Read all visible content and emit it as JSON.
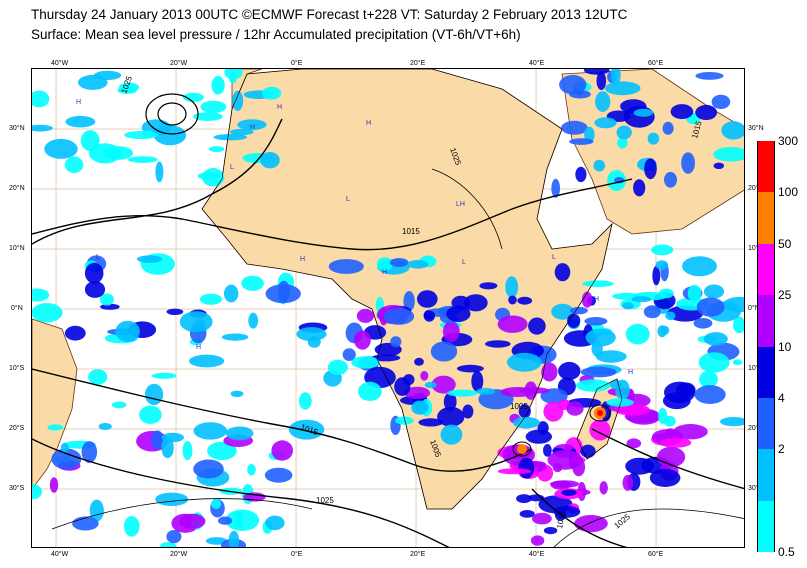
{
  "title_line1": "Thursday 24 January 2013 00UTC ©ECMWF Forecast t+228 VT: Saturday 2 February 2013 12UTC",
  "title_line2": "Surface: Mean sea level pressure / 12hr Accumulated precipitation (VT-6h/VT+6h)",
  "top_ticks": [
    "40°W",
    "20°W",
    "0°E",
    "20°E",
    "40°E",
    "60°E"
  ],
  "bottom_ticks": [
    "40°W",
    "20°W",
    "0°E",
    "20°E",
    "40°E",
    "60°E"
  ],
  "left_ticks": [
    "30°N",
    "20°N",
    "10°N",
    "0°N",
    "10°S",
    "20°S",
    "30°S"
  ],
  "right_ticks": [
    "30°N",
    "20°N",
    "10°N",
    "0°N",
    "10°S",
    "20°S",
    "30°S"
  ],
  "legend": {
    "labels": [
      "300",
      "100",
      "50",
      "25",
      "10",
      "4",
      "2",
      "0.5"
    ],
    "colors": [
      "#ff0000",
      "#ff8000",
      "#ff00ff",
      "#b000ff",
      "#0000e0",
      "#2060ff",
      "#00c0ff",
      "#00ffff"
    ]
  },
  "map": {
    "land_color": "#fadaa6",
    "isobar_labels": [
      "1025",
      "1025",
      "1015",
      "1015",
      "1015",
      "1005",
      "1005",
      "1025",
      "1015",
      "1025"
    ],
    "pressure_centers": [
      "H",
      "H",
      "H",
      "H",
      "L",
      "L",
      "LH",
      "L",
      "L",
      "H",
      "H",
      "H",
      "L",
      "H",
      "H"
    ]
  }
}
